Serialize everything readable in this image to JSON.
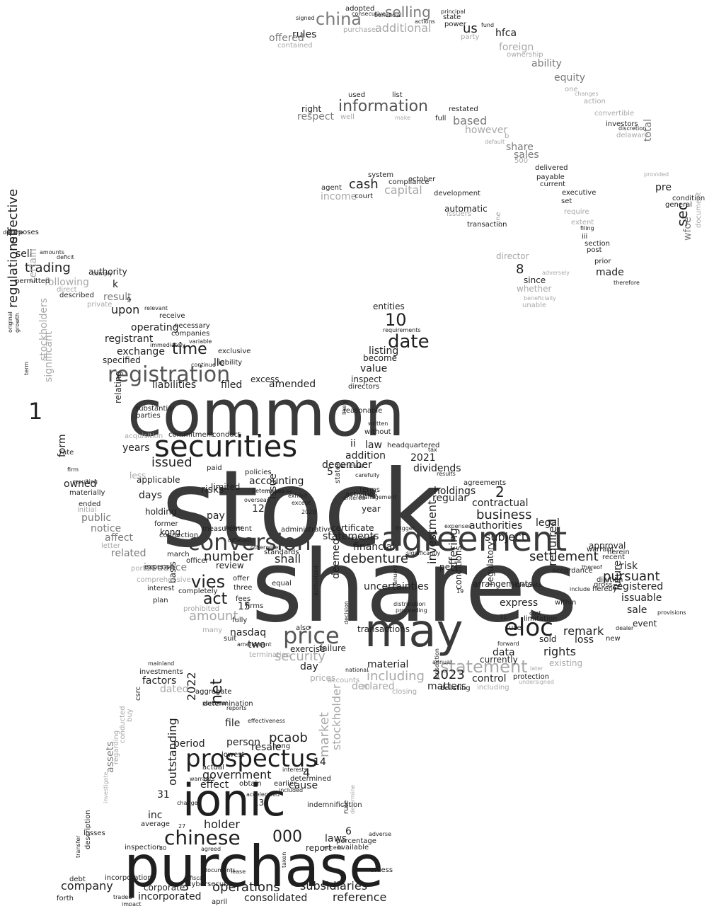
{
  "colors": {
    "background": "#ffffff",
    "tones": [
      "#1f1f1f",
      "#3a3a3a",
      "#555555",
      "#7a7a7a",
      "#a8a8a8",
      "#cfcfcf"
    ]
  },
  "words": [
    "stock",
    "shares",
    "purchase",
    "common",
    "ionic",
    "agreement",
    "may",
    "securities",
    "conversion",
    "registration",
    "prospectus",
    "price",
    "chinese",
    "date",
    "eloc",
    "debenture",
    "statement",
    "china",
    "information",
    "trading",
    "regulations",
    "effective",
    "1",
    "10",
    "settlement",
    "pursuant",
    "including",
    "security",
    "vies",
    "time",
    "act",
    "amount",
    "number",
    "business",
    "operations",
    "subsidiaries",
    "company",
    "government",
    "holder",
    "000",
    "pcaob",
    "period",
    "outstanding",
    "net",
    "2022",
    "market",
    "stockholder",
    "2023",
    "financial",
    "statements",
    "shall",
    "subject",
    "issued",
    "upon",
    "operating",
    "exchange",
    "registrant",
    "liabilities",
    "filed",
    "amended",
    "accounting",
    "dividends",
    "holdings",
    "2",
    "2021",
    "regular",
    "contractual",
    "authorities",
    "legal",
    "rights",
    "remark",
    "required",
    "offering",
    "investment",
    "deemed",
    "future",
    "sale",
    "issuable",
    "loss",
    "registered",
    "risk",
    "selling",
    "us",
    "hfca",
    "rules",
    "offered",
    "additional",
    "foreign",
    "ability",
    "equity",
    "cash",
    "capital",
    "income",
    "based",
    "however",
    "share",
    "sales",
    "respect",
    "right",
    "sec",
    "wfoe",
    "total",
    "pre",
    "made",
    "8",
    "since",
    "whether",
    "director",
    "control",
    "data",
    "material",
    "day",
    "two",
    "nasdaq",
    "reference",
    "incorporated",
    "consolidated",
    "corporate",
    "3",
    "laws",
    "6",
    "report",
    "cause",
    "4",
    "14",
    "resale",
    "file",
    "person",
    "effect",
    "inc",
    "31",
    "assets",
    "factors",
    "dated",
    "sell",
    "following",
    "result",
    "k",
    "certain",
    "stockholders",
    "significant",
    "form",
    "owned",
    "public",
    "notice",
    "affect",
    "related",
    "issuance",
    "risks",
    "days",
    "pay",
    "review",
    "15",
    "12",
    "issue",
    "5",
    "ii",
    "law",
    "addition",
    "december",
    "value",
    "listing",
    "become",
    "inspect",
    "entities",
    "llc",
    "specified",
    "relating",
    "years",
    "express",
    "sold",
    "existing",
    "currently",
    "transactions",
    "uncertainties",
    "failure",
    "exercise",
    "prices",
    "declared",
    "conditions",
    "regulatory",
    "arrangements",
    "per",
    "accordance",
    "approval",
    "hereby",
    "event",
    "new",
    "less",
    "applicable",
    "holding",
    "former",
    "kong",
    "measurement",
    "march",
    "interest",
    "plan",
    "basis",
    "equal",
    "standards",
    "administrative",
    "certificate",
    "year",
    "terms",
    "states",
    "activities",
    "limited",
    "paid",
    "policies",
    "conduct",
    "commitment",
    "acquisition",
    "substantial",
    "parties",
    "companies",
    "receive",
    "necessary",
    "liability",
    "excess",
    "exclusive",
    "immediately",
    "variable",
    "continue",
    "automatic",
    "development",
    "transaction",
    "issuers",
    "june",
    "agent",
    "system",
    "compliance",
    "october",
    "court",
    "restated",
    "full",
    "make",
    "well",
    "used",
    "list",
    "adopted",
    "consecutive",
    "beneficial",
    "actions",
    "principal",
    "state",
    "power",
    "fund",
    "party",
    "ownership",
    "one",
    "changes",
    "action",
    "convertible",
    "investors",
    "discretion",
    "delaware",
    "provided",
    "general",
    "condition",
    "document",
    "therefore",
    "prior",
    "iii",
    "section",
    "post",
    "filing",
    "require",
    "extent",
    "set",
    "executive",
    "current",
    "delivered",
    "payable",
    "500",
    "b",
    "default",
    "unable",
    "beneficially",
    "adversely",
    "purchaser",
    "contained",
    "signed",
    "purposes",
    "decline",
    "amounts",
    "deficit",
    "comply",
    "authority",
    "permitted",
    "direct",
    "private",
    "9",
    "relevant",
    "described",
    "original",
    "growth",
    "term",
    "rate",
    "firm",
    "resulting",
    "materially",
    "ended",
    "initial",
    "letter",
    "portion",
    "expense",
    "comprehensive",
    "connection",
    "officer",
    "completely",
    "prohibited",
    "many",
    "suit",
    "termination",
    "amendment",
    "firms",
    "fully",
    "three",
    "fees",
    "offer",
    "also",
    "national",
    "accounts",
    "20",
    "closing",
    "delisting",
    "matters",
    "including",
    "protection",
    "use",
    "11",
    "limitation",
    "cost",
    "within",
    "warrant",
    "recent",
    "dilution",
    "herein",
    "gross",
    "include",
    "dealer",
    "provisions",
    "thereof",
    "complete",
    "19",
    "january",
    "decision",
    "authorized",
    "proceeding",
    "distribution",
    "significantly",
    "trigger",
    "vwaps",
    "different",
    "otherwise",
    "deliver",
    "determines",
    "overseas",
    "measures",
    "exhibit",
    "except",
    "2020",
    "entered",
    "management",
    "carefully",
    "particular",
    "written",
    "likely",
    "reasonable",
    "without",
    "headquartered",
    "tax",
    "results",
    "expenses",
    "agreements",
    "investments",
    "mainland",
    "aggregate",
    "personal",
    "csrc",
    "buy",
    "conducted",
    "regarding",
    "investigate",
    "determination",
    "reports",
    "effectiveness",
    "lowest",
    "hong",
    "actual",
    "warrants",
    "determined",
    "interests",
    "earlier",
    "included",
    "obtain",
    "accelerated",
    "13",
    "indemnification",
    "change",
    "average",
    "27",
    "30",
    "inspection",
    "agreed",
    "losses",
    "description",
    "transfer",
    "incorporation",
    "debt",
    "forth",
    "traded",
    "impact",
    "april",
    "cybersecurity",
    "fiscal",
    "lease",
    "documents",
    "taken",
    "percentage",
    "available",
    "access",
    "unless",
    "rule",
    "determine",
    "adverse",
    "jurisdiction",
    "annual",
    "forward",
    "later",
    "undersigned",
    "directors",
    "requirements",
    "investing",
    "positions",
    "first",
    "governmental"
  ]
}
